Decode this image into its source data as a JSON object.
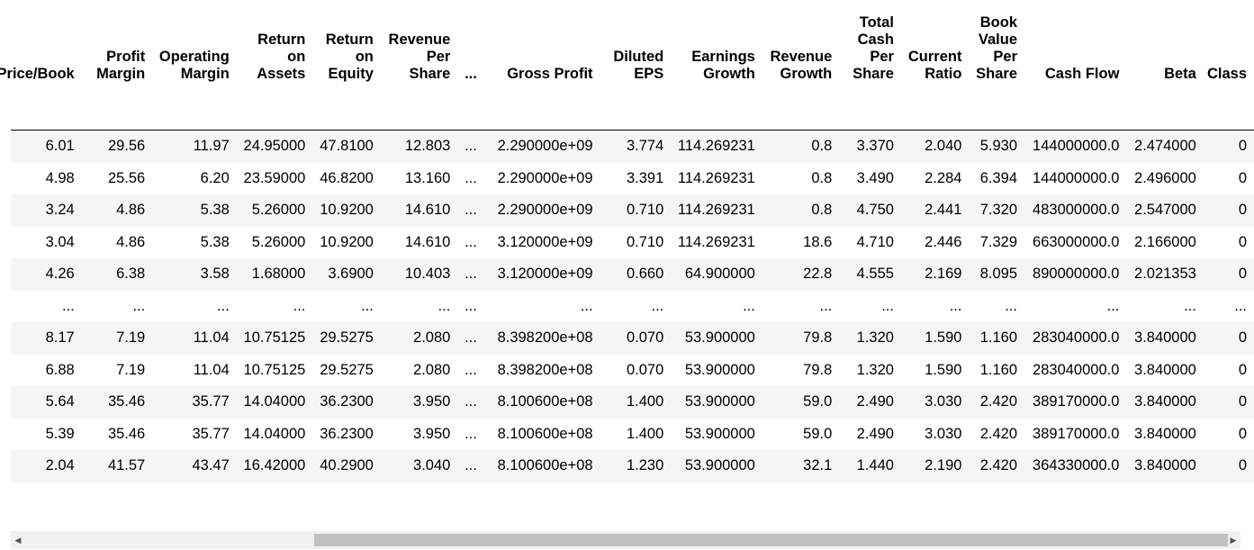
{
  "table": {
    "columns": [
      "Price/Book",
      "Profit Margin",
      "Operating Margin",
      "Return on Assets",
      "Return on Equity",
      "Revenue Per Share",
      "...",
      "Gross Profit",
      "Diluted EPS",
      "Earnings Growth",
      "Revenue Growth",
      "Total Cash Per Share",
      "Current Ratio",
      "Book Value Per Share",
      "Cash Flow",
      "Beta",
      "Class"
    ],
    "rows": [
      [
        "6.01",
        "29.56",
        "11.97",
        "24.95000",
        "47.8100",
        "12.803",
        "...",
        "2.290000e+09",
        "3.774",
        "114.269231",
        "0.8",
        "3.370",
        "2.040",
        "5.930",
        "144000000.0",
        "2.474000",
        "0"
      ],
      [
        "4.98",
        "25.56",
        "6.20",
        "23.59000",
        "46.8200",
        "13.160",
        "...",
        "2.290000e+09",
        "3.391",
        "114.269231",
        "0.8",
        "3.490",
        "2.284",
        "6.394",
        "144000000.0",
        "2.496000",
        "0"
      ],
      [
        "3.24",
        "4.86",
        "5.38",
        "5.26000",
        "10.9200",
        "14.610",
        "...",
        "2.290000e+09",
        "0.710",
        "114.269231",
        "0.8",
        "4.750",
        "2.441",
        "7.320",
        "483000000.0",
        "2.547000",
        "0"
      ],
      [
        "3.04",
        "4.86",
        "5.38",
        "5.26000",
        "10.9200",
        "14.610",
        "...",
        "3.120000e+09",
        "0.710",
        "114.269231",
        "18.6",
        "4.710",
        "2.446",
        "7.329",
        "663000000.0",
        "2.166000",
        "0"
      ],
      [
        "4.26",
        "6.38",
        "3.58",
        "1.68000",
        "3.6900",
        "10.403",
        "...",
        "3.120000e+09",
        "0.660",
        "64.900000",
        "22.8",
        "4.555",
        "2.169",
        "8.095",
        "890000000.0",
        "2.021353",
        "0"
      ],
      [
        "...",
        "...",
        "...",
        "...",
        "...",
        "...",
        "...",
        "...",
        "...",
        "...",
        "...",
        "...",
        "...",
        "...",
        "...",
        "...",
        "..."
      ],
      [
        "8.17",
        "7.19",
        "11.04",
        "10.75125",
        "29.5275",
        "2.080",
        "...",
        "8.398200e+08",
        "0.070",
        "53.900000",
        "79.8",
        "1.320",
        "1.590",
        "1.160",
        "283040000.0",
        "3.840000",
        "0"
      ],
      [
        "6.88",
        "7.19",
        "11.04",
        "10.75125",
        "29.5275",
        "2.080",
        "...",
        "8.398200e+08",
        "0.070",
        "53.900000",
        "79.8",
        "1.320",
        "1.590",
        "1.160",
        "283040000.0",
        "3.840000",
        "0"
      ],
      [
        "5.64",
        "35.46",
        "35.77",
        "14.04000",
        "36.2300",
        "3.950",
        "...",
        "8.100600e+08",
        "1.400",
        "53.900000",
        "59.0",
        "2.490",
        "3.030",
        "2.420",
        "389170000.0",
        "3.840000",
        "0"
      ],
      [
        "5.39",
        "35.46",
        "35.77",
        "14.04000",
        "36.2300",
        "3.950",
        "...",
        "8.100600e+08",
        "1.400",
        "53.900000",
        "59.0",
        "2.490",
        "3.030",
        "2.420",
        "389170000.0",
        "3.840000",
        "0"
      ],
      [
        "2.04",
        "41.57",
        "43.47",
        "16.42000",
        "40.2900",
        "3.040",
        "...",
        "8.100600e+08",
        "1.230",
        "53.900000",
        "32.1",
        "1.440",
        "2.190",
        "2.420",
        "364330000.0",
        "3.840000",
        "0"
      ]
    ]
  },
  "scrollbar": {
    "left_arrow": "◀",
    "right_arrow": "▶"
  }
}
